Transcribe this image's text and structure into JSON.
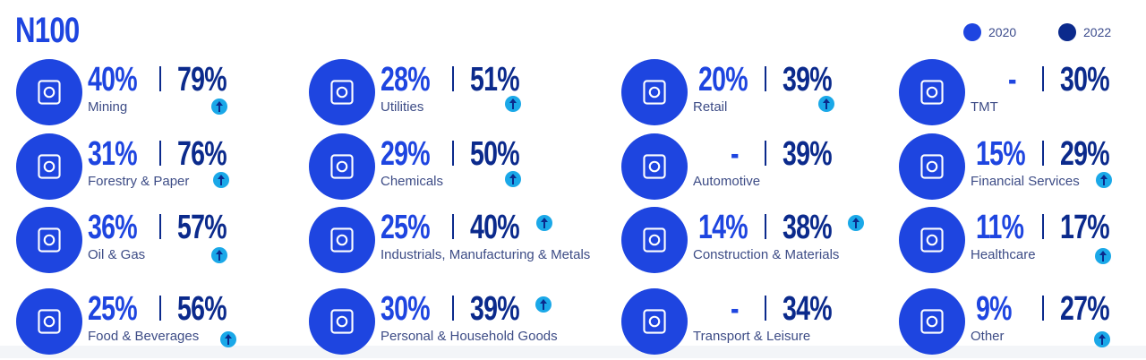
{
  "title": "N100",
  "legend": [
    {
      "label": "2020",
      "color": "#1e45e0"
    },
    {
      "label": "2022",
      "color": "#0b2a8c"
    }
  ],
  "colors": {
    "v2020": "#1e45e0",
    "v2022": "#0b2a8c",
    "arrow": "#1aa8e8"
  },
  "sectors": [
    {
      "label": "Mining",
      "v2020": "40%",
      "v2022": "79%",
      "icon": "mine-cart-icon",
      "up": true
    },
    {
      "label": "Utilities",
      "v2020": "28%",
      "v2022": "51%",
      "icon": "tools-icon",
      "up": true
    },
    {
      "label": "Retail",
      "v2020": "20%",
      "v2022": "39%",
      "icon": "shopping-cart-icon",
      "up": true
    },
    {
      "label": "TMT",
      "v2020": "-",
      "v2022": "30%",
      "icon": "smartphone-icon",
      "up": false
    },
    {
      "label": "Forestry & Paper",
      "v2020": "31%",
      "v2022": "76%",
      "icon": "wheat-icon",
      "up": true
    },
    {
      "label": "Chemicals",
      "v2020": "29%",
      "v2022": "50%",
      "icon": "flask-icon",
      "up": true
    },
    {
      "label": "Automotive",
      "v2020": "-",
      "v2022": "39%",
      "icon": "car-icon",
      "up": false
    },
    {
      "label": "Financial Services",
      "v2020": "15%",
      "v2022": "29%",
      "icon": "wallet-icon",
      "up": true
    },
    {
      "label": "Oil & Gas",
      "v2020": "36%",
      "v2022": "57%",
      "icon": "oil-can-icon",
      "up": true
    },
    {
      "label": "Industrials, Manufacturing & Metals",
      "v2020": "25%",
      "v2022": "40%",
      "icon": "oil-rig-icon",
      "up": true
    },
    {
      "label": "Construction & Materials",
      "v2020": "14%",
      "v2022": "38%",
      "icon": "wheelbarrow-icon",
      "up": true
    },
    {
      "label": "Healthcare",
      "v2020": "11%",
      "v2022": "17%",
      "icon": "pill-icon",
      "up": true
    },
    {
      "label": "Food & Beverages",
      "v2020": "25%",
      "v2022": "56%",
      "icon": "cup-icon",
      "up": true
    },
    {
      "label": "Personal & Household Goods",
      "v2020": "30%",
      "v2022": "39%",
      "icon": "soap-bottle-icon",
      "up": true
    },
    {
      "label": "Transport & Leisure",
      "v2020": "-",
      "v2022": "34%",
      "icon": "taxi-icon",
      "up": false
    },
    {
      "label": "Other",
      "v2020": "9%",
      "v2022": "27%",
      "icon": "lightbulb-icon",
      "up": true
    }
  ]
}
